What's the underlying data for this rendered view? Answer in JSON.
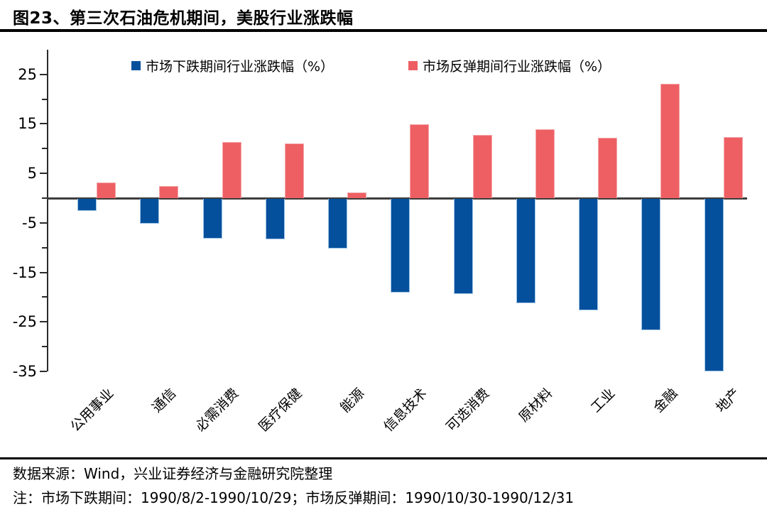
{
  "title": "图23、第三次石油危机期间，美股行业涨跌幅",
  "chart_data": {
    "type": "bar",
    "categories": [
      "公用事业",
      "通信",
      "必需消费",
      "医疗保健",
      "能源",
      "信息技术",
      "可选消费",
      "原材料",
      "工业",
      "金融",
      "地产"
    ],
    "series": [
      {
        "name": "市场下跌期间行业涨跌幅（%）",
        "color": "#04509C",
        "edge": "#9DC3E6",
        "values": [
          -2.5,
          -5.0,
          -8.1,
          -8.2,
          -10.1,
          -19.0,
          -19.2,
          -21.1,
          -22.5,
          -26.6,
          -34.8
        ]
      },
      {
        "name": "市场反弹期间行业涨跌幅（%）",
        "color": "#EE5F64",
        "edge": "#F4A7A9",
        "values": [
          3.1,
          2.5,
          11.4,
          11.0,
          1.2,
          14.9,
          12.7,
          13.9,
          12.2,
          23.1,
          12.4
        ]
      }
    ],
    "ylim": [
      -35,
      29
    ],
    "yticks": [
      25,
      15,
      5,
      -5,
      -15,
      -25,
      -35
    ],
    "minor_tick_step": 5,
    "grid": false,
    "legend_position": "top"
  },
  "footer": {
    "source": "数据来源：Wind，兴业证券经济与金融研究院整理",
    "note": "注：市场下跌期间：1990/8/2-1990/10/29；市场反弹期间：1990/10/30-1990/12/31"
  }
}
